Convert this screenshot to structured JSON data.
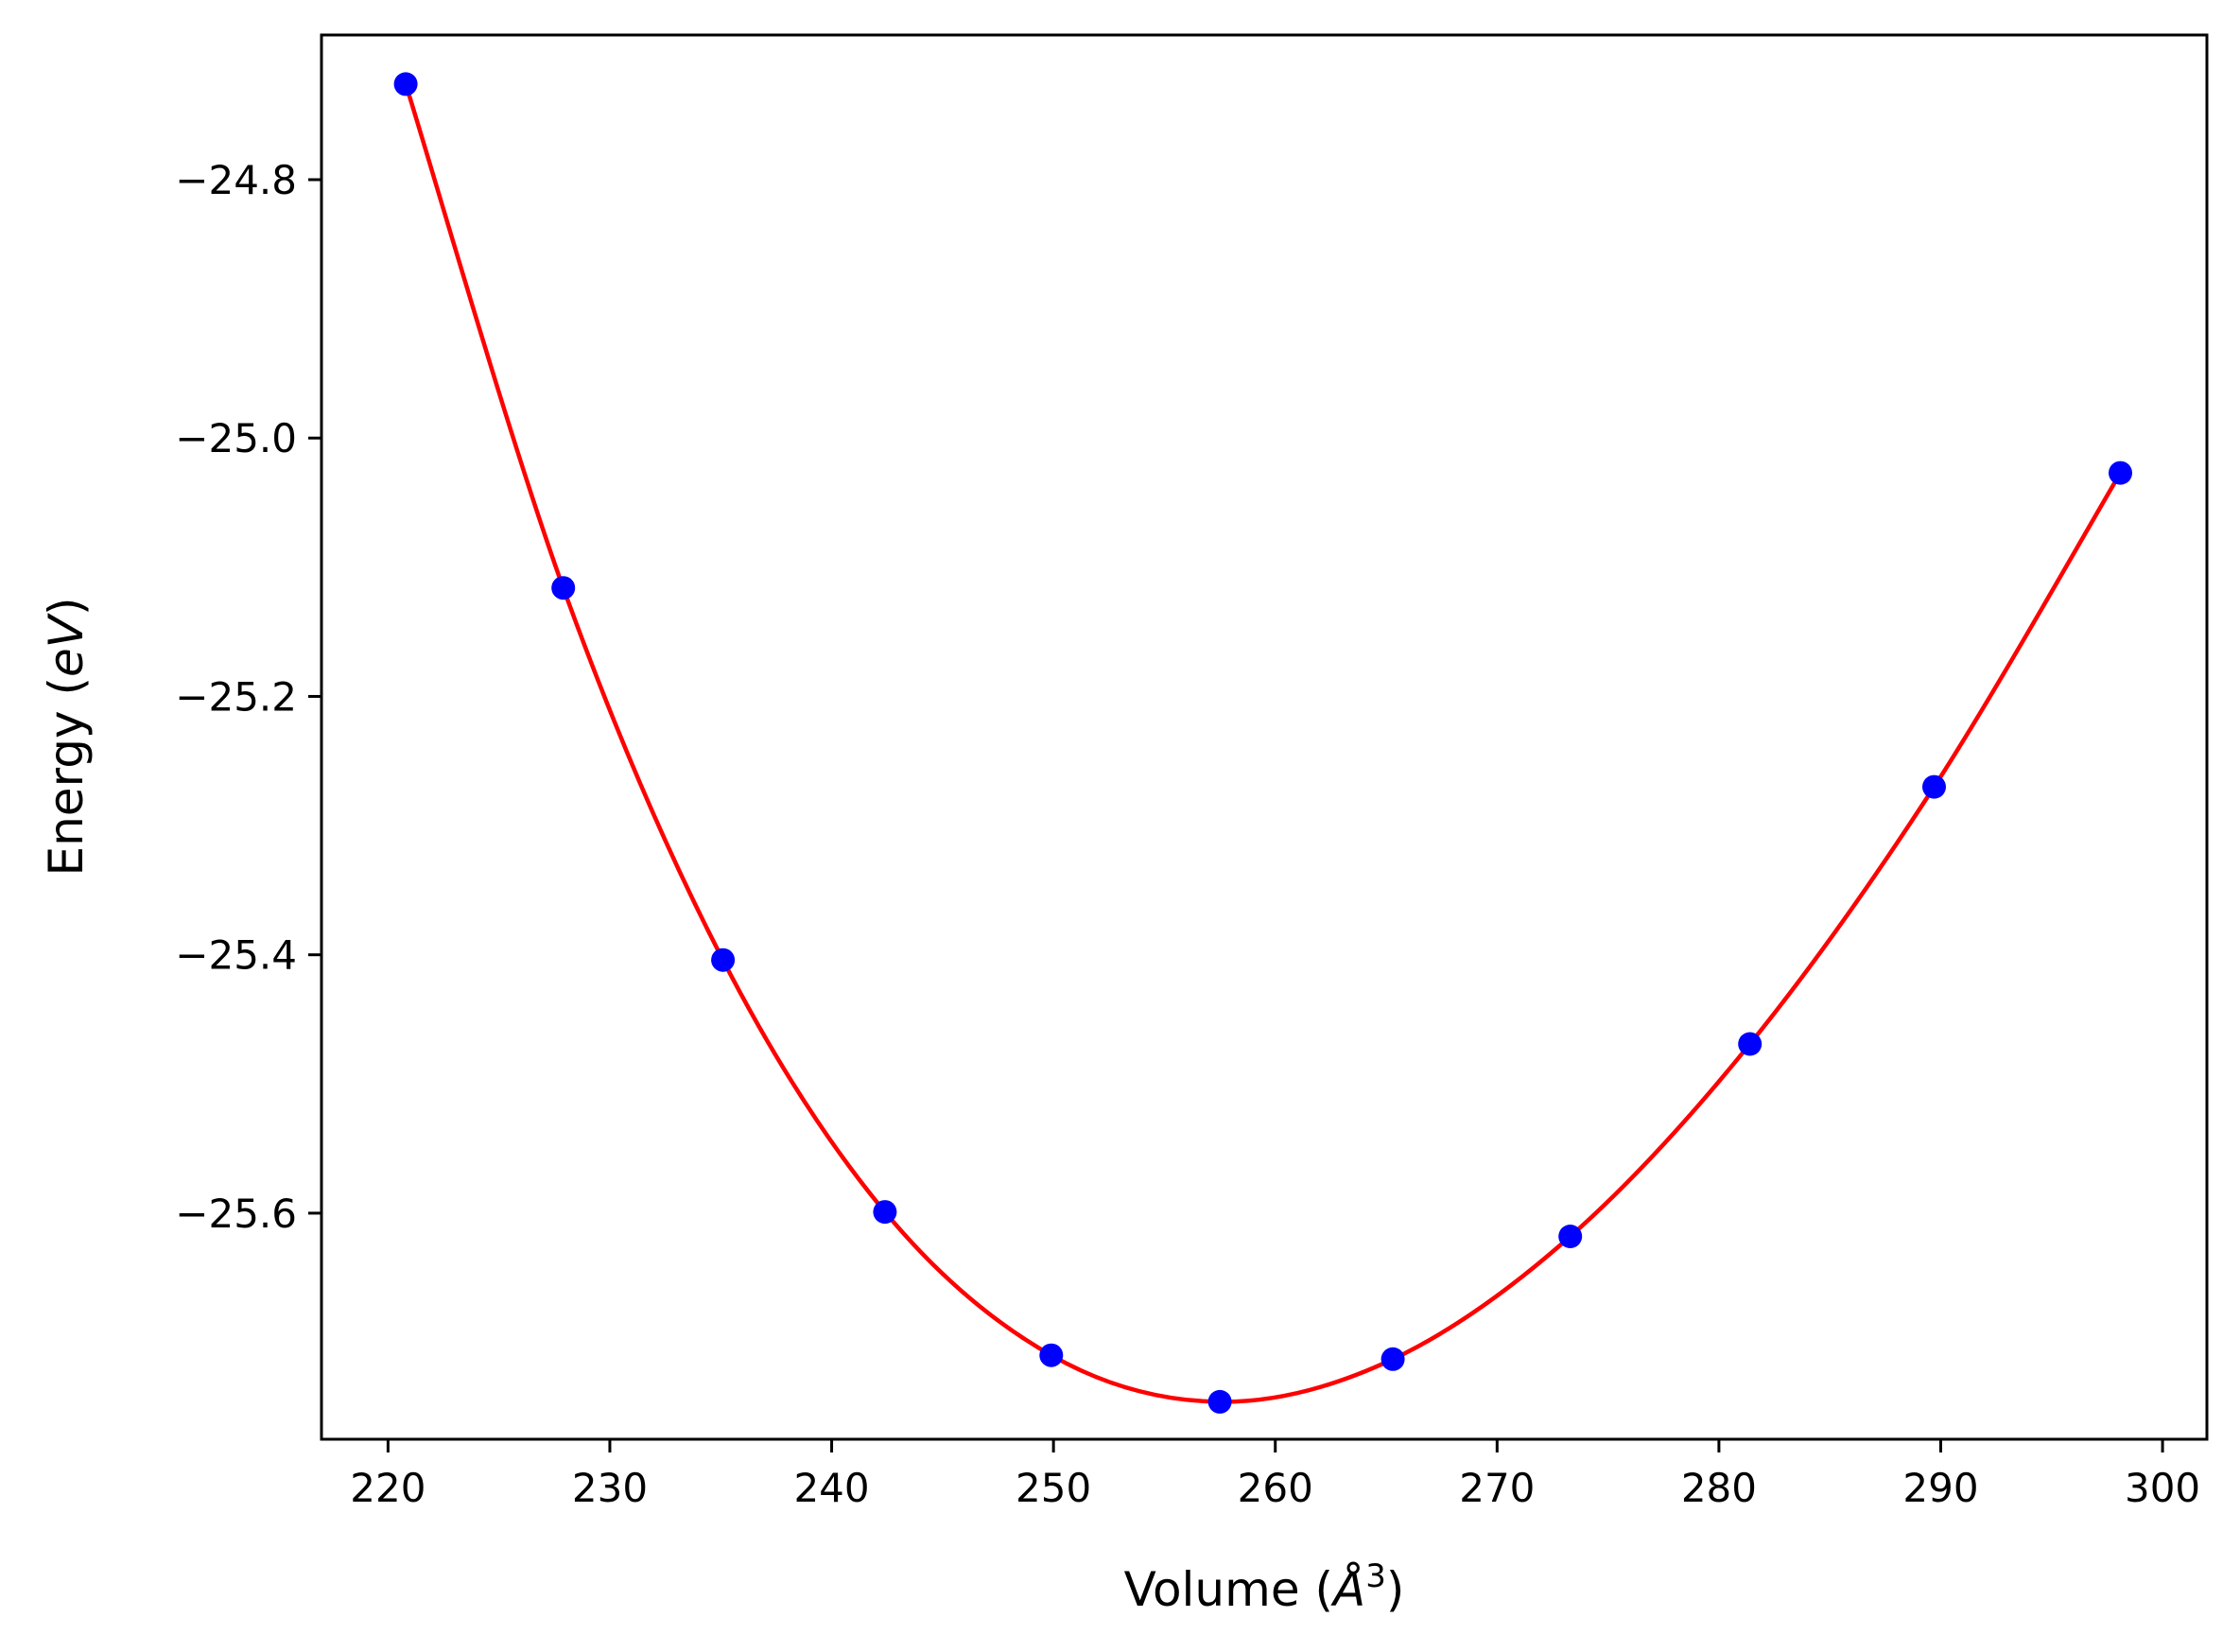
{
  "chart_data": {
    "type": "scatter",
    "xlabel": {
      "prefix": "Volume (",
      "symbol": "Å",
      "sup": "3",
      "suffix": ")"
    },
    "ylabel": {
      "prefix": "Energy (",
      "symbol": "eV",
      "suffix": ")"
    },
    "xlim": [
      217,
      302
    ],
    "ylim": [
      -25.775,
      -24.688
    ],
    "x_ticks": [
      220,
      230,
      240,
      250,
      260,
      270,
      280,
      290,
      300
    ],
    "y_ticks": [
      -24.8,
      -25.0,
      -25.2,
      -25.4,
      -25.6
    ],
    "y_tick_labels": [
      "−24.8",
      "−25.0",
      "−25.2",
      "−25.4",
      "−25.6"
    ],
    "grid": false,
    "series": [
      {
        "kind": "points",
        "color": "#0000ff",
        "x": [
          220.8,
          227.9,
          235.1,
          242.4,
          249.9,
          257.5,
          265.3,
          273.3,
          281.4,
          289.7,
          298.1
        ],
        "y": [
          -24.726,
          -25.116,
          -25.404,
          -25.599,
          -25.71,
          -25.746,
          -25.713,
          -25.618,
          -25.469,
          -25.27,
          -25.027
        ]
      },
      {
        "kind": "fit-curve",
        "color": "#ff0000",
        "x_min": 220.8,
        "x_max": 298.1,
        "vertex_x": 257.2,
        "vertex_y": -25.745
      }
    ]
  }
}
